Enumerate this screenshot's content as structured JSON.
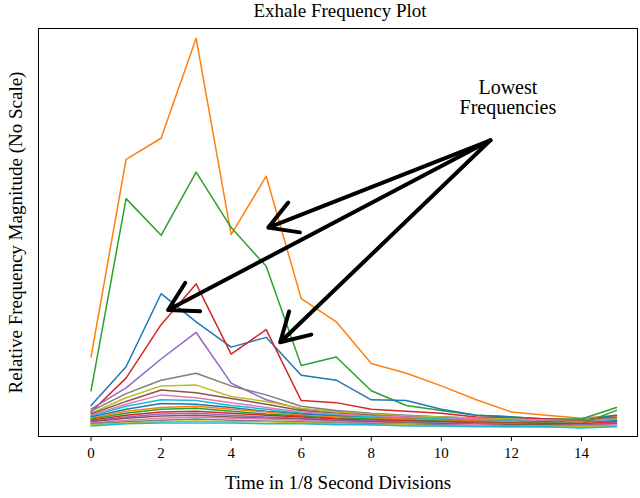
{
  "chart_data": {
    "type": "line",
    "title": "Exhale Frequency Plot",
    "x_label": "Time in 1/8 Second Divisions",
    "y_label": "Relative Frequency Magnitude (No Scale)",
    "x": [
      0,
      1,
      2,
      3,
      4,
      5,
      6,
      7,
      8,
      9,
      10,
      11,
      12,
      13,
      14,
      15
    ],
    "xlim": [
      -1.5,
      15.6
    ],
    "xticks": [
      0,
      2,
      4,
      6,
      8,
      10,
      12,
      14
    ],
    "ylim": [
      0,
      100
    ],
    "tick_labels": "x",
    "grid": false,
    "series": [
      {
        "color": "#ff7f0e",
        "values": [
          19.5,
          67.9,
          73.1,
          97.6,
          49.5,
          63.8,
          33.8,
          28.1,
          17.9,
          15.5,
          12.4,
          9.0,
          6.0,
          5.2,
          4.5,
          5.2
        ]
      },
      {
        "color": "#2ca02c",
        "values": [
          11.2,
          58.3,
          49.3,
          64.8,
          51.2,
          41.7,
          17.4,
          19.5,
          11.2,
          7.6,
          6.4,
          5.2,
          4.8,
          4.3,
          4.3,
          7.1
        ]
      },
      {
        "color": "#1f77b4",
        "values": [
          7.6,
          17.1,
          35.0,
          28.1,
          21.9,
          24.3,
          15.0,
          13.8,
          9.0,
          8.8,
          6.7,
          5.2,
          4.8,
          4.3,
          4.0,
          5.2
        ]
      },
      {
        "color": "#d62728",
        "values": [
          6.0,
          14.3,
          27.4,
          37.4,
          20.2,
          26.2,
          8.8,
          8.3,
          6.7,
          6.2,
          5.7,
          4.8,
          4.5,
          4.3,
          4.0,
          4.8
        ]
      },
      {
        "color": "#9467bd",
        "values": [
          6.7,
          11.9,
          19.0,
          25.5,
          13.1,
          9.0,
          6.7,
          6.2,
          5.5,
          5.0,
          4.8,
          4.5,
          4.3,
          4.0,
          4.0,
          4.3
        ]
      },
      {
        "color": "#7f7f7f",
        "values": [
          6.2,
          10.5,
          13.8,
          15.5,
          12.4,
          10.2,
          7.4,
          6.4,
          5.7,
          5.2,
          4.8,
          4.5,
          4.3,
          4.0,
          4.0,
          4.5
        ]
      },
      {
        "color": "#bcbd22",
        "values": [
          5.7,
          9.5,
          12.4,
          12.6,
          9.8,
          8.6,
          6.9,
          6.0,
          5.5,
          5.0,
          4.8,
          4.5,
          4.3,
          4.0,
          3.8,
          4.3
        ]
      },
      {
        "color": "#8c564b",
        "values": [
          5.5,
          8.6,
          11.4,
          10.7,
          9.3,
          7.9,
          6.4,
          5.7,
          5.2,
          4.8,
          4.5,
          4.3,
          4.0,
          3.8,
          3.8,
          4.0
        ]
      },
      {
        "color": "#e377c2",
        "values": [
          5.2,
          7.9,
          10.2,
          9.5,
          8.3,
          7.1,
          6.0,
          5.5,
          5.0,
          4.8,
          4.5,
          4.3,
          4.0,
          3.8,
          3.6,
          4.0
        ]
      },
      {
        "color": "#17becf",
        "values": [
          5.0,
          7.4,
          9.0,
          8.8,
          7.6,
          6.7,
          5.7,
          5.2,
          4.8,
          4.5,
          4.3,
          4.0,
          3.8,
          3.6,
          3.6,
          3.8
        ]
      },
      {
        "color": "#1f77b4",
        "values": [
          4.8,
          6.7,
          8.1,
          7.9,
          7.1,
          6.2,
          5.5,
          5.0,
          4.5,
          4.3,
          4.0,
          3.8,
          3.6,
          3.6,
          3.3,
          3.8
        ]
      },
      {
        "color": "#ff7f0e",
        "values": [
          4.5,
          6.2,
          7.1,
          7.4,
          6.7,
          6.0,
          5.2,
          4.8,
          4.5,
          4.3,
          4.0,
          3.8,
          3.6,
          3.3,
          3.3,
          3.6
        ]
      },
      {
        "color": "#2ca02c",
        "values": [
          4.3,
          5.7,
          6.7,
          6.9,
          6.2,
          5.5,
          5.0,
          4.5,
          4.3,
          4.0,
          3.8,
          3.6,
          3.3,
          3.3,
          3.1,
          6.4
        ]
      },
      {
        "color": "#d62728",
        "values": [
          4.0,
          5.2,
          6.0,
          6.2,
          5.7,
          5.2,
          4.8,
          4.3,
          4.0,
          3.8,
          3.6,
          3.3,
          3.3,
          3.1,
          3.1,
          3.6
        ]
      },
      {
        "color": "#9467bd",
        "values": [
          3.8,
          4.8,
          5.5,
          5.7,
          5.2,
          4.8,
          4.5,
          4.0,
          3.8,
          3.6,
          3.3,
          3.1,
          3.1,
          2.9,
          2.9,
          3.3
        ]
      },
      {
        "color": "#8c564b",
        "values": [
          3.6,
          4.5,
          5.0,
          5.2,
          4.8,
          4.5,
          4.3,
          3.8,
          3.6,
          3.3,
          3.1,
          2.9,
          2.9,
          2.9,
          2.6,
          3.1
        ]
      },
      {
        "color": "#e377c2",
        "values": [
          3.3,
          4.0,
          4.5,
          4.8,
          4.5,
          4.3,
          4.0,
          3.6,
          3.3,
          3.1,
          2.9,
          2.9,
          2.6,
          2.6,
          2.6,
          2.9
        ]
      },
      {
        "color": "#7f7f7f",
        "values": [
          3.1,
          3.6,
          4.0,
          4.3,
          4.0,
          3.8,
          3.6,
          3.3,
          3.1,
          2.9,
          2.9,
          2.6,
          2.6,
          2.4,
          2.4,
          2.6
        ]
      },
      {
        "color": "#bcbd22",
        "values": [
          2.9,
          3.3,
          3.6,
          3.8,
          3.6,
          3.6,
          3.3,
          3.1,
          2.9,
          2.9,
          2.6,
          2.6,
          2.4,
          2.4,
          2.4,
          2.6
        ]
      },
      {
        "color": "#17becf",
        "values": [
          2.6,
          3.1,
          3.3,
          3.3,
          3.3,
          3.1,
          3.1,
          2.9,
          2.9,
          2.6,
          2.6,
          2.4,
          2.4,
          2.4,
          2.1,
          2.4
        ]
      }
    ],
    "annotation": {
      "text": "Lowest Frequencies",
      "x": 11.9,
      "y": 83,
      "arrows": [
        {
          "x1": 11.4,
          "y1": 72.6,
          "x2": 5.06,
          "y2": 51.2
        },
        {
          "x1": 11.4,
          "y1": 72.6,
          "x2": 2.2,
          "y2": 31.0
        },
        {
          "x1": 11.4,
          "y1": 72.6,
          "x2": 5.4,
          "y2": 23.1
        }
      ]
    }
  }
}
